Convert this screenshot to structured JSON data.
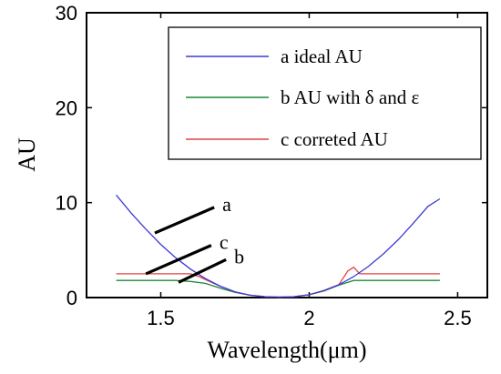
{
  "chart_data": {
    "type": "line",
    "xlabel": "Wavelength(μm)",
    "ylabel": "AU",
    "xlim": [
      1.25,
      2.6
    ],
    "ylim": [
      0,
      30
    ],
    "xticks": [
      "1.5",
      "2",
      "2.5"
    ],
    "yticks": [
      "0",
      "10",
      "20",
      "30"
    ],
    "grid": false,
    "legend_position": "top-right",
    "series": [
      {
        "name": "a ideal AU",
        "color": "#3b3bd6",
        "x": [
          1.35,
          1.4,
          1.45,
          1.5,
          1.55,
          1.6,
          1.65,
          1.7,
          1.75,
          1.8,
          1.85,
          1.9,
          1.95,
          2.0,
          2.05,
          2.1,
          2.15,
          2.2,
          2.25,
          2.3,
          2.35,
          2.4,
          2.44
        ],
        "values": [
          10.8,
          8.9,
          7.2,
          5.6,
          4.2,
          3.0,
          2.0,
          1.2,
          0.6,
          0.25,
          0.1,
          0.05,
          0.1,
          0.3,
          0.75,
          1.35,
          2.2,
          3.3,
          4.6,
          6.1,
          7.8,
          9.6,
          10.4
        ]
      },
      {
        "name": "b AU with δ and ε",
        "color": "#1a8a3a",
        "x": [
          1.35,
          1.55,
          1.6,
          1.65,
          1.7,
          1.75,
          1.8,
          1.85,
          1.9,
          1.95,
          2.0,
          2.05,
          2.1,
          2.15,
          2.2,
          2.44
        ],
        "values": [
          1.8,
          1.8,
          1.7,
          1.5,
          1.0,
          0.55,
          0.25,
          0.1,
          0.05,
          0.1,
          0.3,
          0.7,
          1.3,
          1.8,
          1.8,
          1.8
        ]
      },
      {
        "name": "c correted AU",
        "color": "#e04040",
        "x": [
          1.35,
          1.6,
          1.63,
          1.65,
          1.7,
          1.75,
          1.8,
          1.85,
          1.9,
          1.95,
          2.0,
          2.05,
          2.1,
          2.13,
          2.15,
          2.17,
          2.2,
          2.44
        ],
        "values": [
          2.5,
          2.5,
          2.2,
          1.9,
          1.2,
          0.6,
          0.25,
          0.1,
          0.05,
          0.1,
          0.3,
          0.75,
          1.35,
          2.8,
          3.2,
          2.5,
          2.5,
          2.5
        ]
      }
    ],
    "annotations": [
      {
        "label": "a",
        "line_from": [
          1.48,
          6.8
        ],
        "line_to": [
          1.68,
          9.5
        ]
      },
      {
        "label": "c",
        "line_from": [
          1.45,
          2.5
        ],
        "line_to": [
          1.67,
          5.5
        ]
      },
      {
        "label": "b",
        "line_from": [
          1.56,
          1.6
        ],
        "line_to": [
          1.72,
          4.0
        ]
      }
    ]
  }
}
